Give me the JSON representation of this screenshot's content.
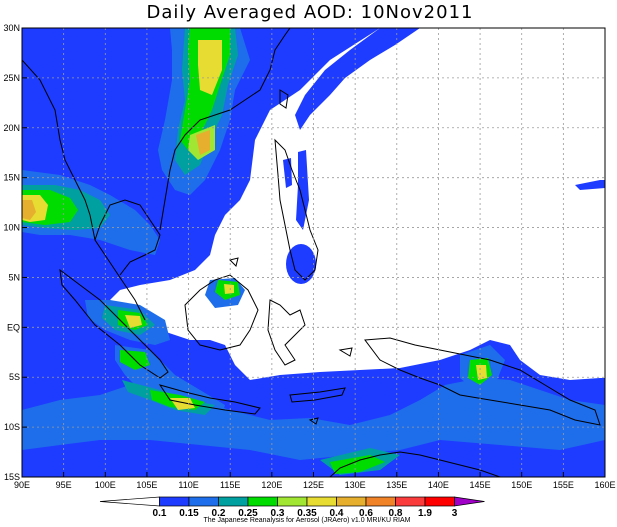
{
  "title": "Daily Averaged AOD: 10Nov2011",
  "footer": "The Japanese Reanalysis for Aerosol (JRAero) v1.0 MRI/KU RIAM",
  "map": {
    "lon_range": [
      90,
      160
    ],
    "lat_range": [
      -15,
      30
    ],
    "x_ticks": [
      {
        "value": 90,
        "label": "90E"
      },
      {
        "value": 95,
        "label": "95E"
      },
      {
        "value": 100,
        "label": "100E"
      },
      {
        "value": 105,
        "label": "105E"
      },
      {
        "value": 110,
        "label": "110E"
      },
      {
        "value": 115,
        "label": "115E"
      },
      {
        "value": 120,
        "label": "120E"
      },
      {
        "value": 125,
        "label": "125E"
      },
      {
        "value": 130,
        "label": "130E"
      },
      {
        "value": 135,
        "label": "135E"
      },
      {
        "value": 140,
        "label": "140E"
      },
      {
        "value": 145,
        "label": "145E"
      },
      {
        "value": 150,
        "label": "150E"
      },
      {
        "value": 155,
        "label": "155E"
      },
      {
        "value": 160,
        "label": "160E"
      }
    ],
    "y_ticks": [
      {
        "value": 30,
        "label": "30N"
      },
      {
        "value": 25,
        "label": "25N"
      },
      {
        "value": 20,
        "label": "20N"
      },
      {
        "value": 15,
        "label": "15N"
      },
      {
        "value": 10,
        "label": "10N"
      },
      {
        "value": 5,
        "label": "5N"
      },
      {
        "value": 0,
        "label": "EQ"
      },
      {
        "value": -5,
        "label": "5S"
      },
      {
        "value": -10,
        "label": "10S"
      },
      {
        "value": -15,
        "label": "15S"
      }
    ],
    "grid": true
  },
  "colorbar": {
    "colors": [
      "#ffffff",
      "#1e3cff",
      "#1e6eeb",
      "#00a0a0",
      "#00dc00",
      "#a0e632",
      "#e6dc32",
      "#e6af2d",
      "#f08228",
      "#fa3c3c",
      "#ff0000",
      "#a000c8"
    ],
    "labels": [
      "0.1",
      "0.15",
      "0.2",
      "0.25",
      "0.3",
      "0.35",
      "0.4",
      "0.6",
      "0.8",
      "1.9",
      "3"
    ]
  },
  "colors": {
    "aod_low": "#1e3cff",
    "aod_mid": "#1e6eeb",
    "aod_teal": "#00a0a0",
    "aod_green": "#00dc00",
    "aod_yellowgreen": "#a0e632",
    "aod_yellow": "#e6dc32",
    "aod_orange": "#e6af2d"
  }
}
